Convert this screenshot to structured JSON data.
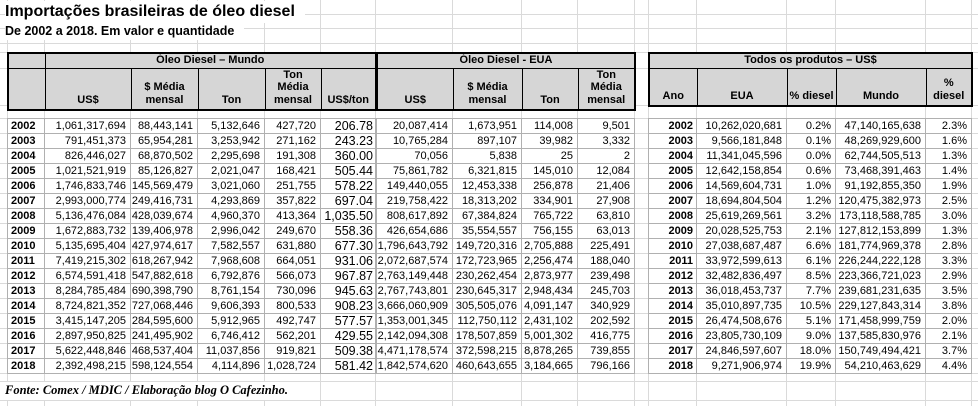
{
  "title": "Importações brasileiras de óleo diesel",
  "subtitle": "De 2002 a 2018. Em valor e quantidade",
  "source": "Fonte: Comex / MDIC / Elaboração blog O Cafezinho.",
  "sections": {
    "mundo": {
      "title": "Óleo Diesel – Mundo",
      "columns": [
        "US$",
        "$ Média mensal",
        "Ton",
        "Ton Média mensal",
        "US$/ton"
      ]
    },
    "eua": {
      "title": "Óleo Diesel - EUA",
      "columns": [
        "US$",
        "$ Média mensal",
        "Ton",
        "Ton Média mensal"
      ]
    },
    "todos": {
      "title": "Todos os produtos – US$",
      "columns": [
        "Ano",
        "EUA",
        "% diesel",
        "Mundo",
        "% diesel"
      ]
    }
  },
  "rows": [
    {
      "year": "2002",
      "mundo": [
        "1,061,317,694",
        "88,443,141",
        "5,132,646",
        "427,720",
        "206.78"
      ],
      "eua": [
        "20,087,414",
        "1,673,951",
        "114,008",
        "9,501"
      ],
      "todos": [
        "10,262,020,681",
        "0.2%",
        "47,140,165,638",
        "2.3%"
      ]
    },
    {
      "year": "2003",
      "mundo": [
        "791,451,373",
        "65,954,281",
        "3,253,942",
        "271,162",
        "243.23"
      ],
      "eua": [
        "10,765,284",
        "897,107",
        "39,982",
        "3,332"
      ],
      "todos": [
        "9,566,181,848",
        "0.1%",
        "48,269,929,600",
        "1.6%"
      ]
    },
    {
      "year": "2004",
      "mundo": [
        "826,446,027",
        "68,870,502",
        "2,295,698",
        "191,308",
        "360.00"
      ],
      "eua": [
        "70,056",
        "5,838",
        "25",
        "2"
      ],
      "todos": [
        "11,341,045,596",
        "0.0%",
        "62,744,505,513",
        "1.3%"
      ]
    },
    {
      "year": "2005",
      "mundo": [
        "1,021,521,919",
        "85,126,827",
        "2,021,047",
        "168,421",
        "505.44"
      ],
      "eua": [
        "75,861,782",
        "6,321,815",
        "145,010",
        "12,084"
      ],
      "todos": [
        "12,642,158,854",
        "0.6%",
        "73,468,391,463",
        "1.4%"
      ]
    },
    {
      "year": "2006",
      "mundo": [
        "1,746,833,746",
        "145,569,479",
        "3,021,060",
        "251,755",
        "578.22"
      ],
      "eua": [
        "149,440,055",
        "12,453,338",
        "256,878",
        "21,406"
      ],
      "todos": [
        "14,569,604,731",
        "1.0%",
        "91,192,855,350",
        "1.9%"
      ]
    },
    {
      "year": "2007",
      "mundo": [
        "2,993,000,774",
        "249,416,731",
        "4,293,869",
        "357,822",
        "697.04"
      ],
      "eua": [
        "219,758,422",
        "18,313,202",
        "334,901",
        "27,908"
      ],
      "todos": [
        "18,694,804,504",
        "1.2%",
        "120,475,382,973",
        "2.5%"
      ]
    },
    {
      "year": "2008",
      "mundo": [
        "5,136,476,084",
        "428,039,674",
        "4,960,370",
        "413,364",
        "1,035.50"
      ],
      "eua": [
        "808,617,892",
        "67,384,824",
        "765,722",
        "63,810"
      ],
      "todos": [
        "25,619,269,561",
        "3.2%",
        "173,118,588,785",
        "3.0%"
      ]
    },
    {
      "year": "2009",
      "mundo": [
        "1,672,883,732",
        "139,406,978",
        "2,996,042",
        "249,670",
        "558.36"
      ],
      "eua": [
        "426,654,686",
        "35,554,557",
        "756,155",
        "63,013"
      ],
      "todos": [
        "20,028,525,753",
        "2.1%",
        "127,812,153,899",
        "1.3%"
      ]
    },
    {
      "year": "2010",
      "mundo": [
        "5,135,695,404",
        "427,974,617",
        "7,582,557",
        "631,880",
        "677.30"
      ],
      "eua": [
        "1,796,643,792",
        "149,720,316",
        "2,705,888",
        "225,491"
      ],
      "todos": [
        "27,038,687,487",
        "6.6%",
        "181,774,969,378",
        "2.8%"
      ]
    },
    {
      "year": "2011",
      "mundo": [
        "7,419,215,302",
        "618,267,942",
        "7,968,608",
        "664,051",
        "931.06"
      ],
      "eua": [
        "2,072,687,574",
        "172,723,965",
        "2,256,474",
        "188,040"
      ],
      "todos": [
        "33,972,599,613",
        "6.1%",
        "226,244,222,128",
        "3.3%"
      ]
    },
    {
      "year": "2012",
      "mundo": [
        "6,574,591,418",
        "547,882,618",
        "6,792,876",
        "566,073",
        "967.87"
      ],
      "eua": [
        "2,763,149,448",
        "230,262,454",
        "2,873,977",
        "239,498"
      ],
      "todos": [
        "32,482,836,497",
        "8.5%",
        "223,366,721,023",
        "2.9%"
      ]
    },
    {
      "year": "2013",
      "mundo": [
        "8,284,785,484",
        "690,398,790",
        "8,761,154",
        "730,096",
        "945.63"
      ],
      "eua": [
        "2,767,743,801",
        "230,645,317",
        "2,948,434",
        "245,703"
      ],
      "todos": [
        "36,018,453,737",
        "7.7%",
        "239,681,231,635",
        "3.5%"
      ]
    },
    {
      "year": "2014",
      "mundo": [
        "8,724,821,352",
        "727,068,446",
        "9,606,393",
        "800,533",
        "908.23"
      ],
      "eua": [
        "3,666,060,909",
        "305,505,076",
        "4,091,147",
        "340,929"
      ],
      "todos": [
        "35,010,897,735",
        "10.5%",
        "229,127,843,314",
        "3.8%"
      ]
    },
    {
      "year": "2015",
      "mundo": [
        "3,415,147,205",
        "284,595,600",
        "5,912,965",
        "492,747",
        "577.57"
      ],
      "eua": [
        "1,353,001,345",
        "112,750,112",
        "2,431,102",
        "202,592"
      ],
      "todos": [
        "26,474,508,676",
        "5.1%",
        "171,458,999,759",
        "2.0%"
      ]
    },
    {
      "year": "2016",
      "mundo": [
        "2,897,950,825",
        "241,495,902",
        "6,746,412",
        "562,201",
        "429.55"
      ],
      "eua": [
        "2,142,094,308",
        "178,507,859",
        "5,001,302",
        "416,775"
      ],
      "todos": [
        "23,805,730,109",
        "9.0%",
        "137,585,830,976",
        "2.1%"
      ]
    },
    {
      "year": "2017",
      "mundo": [
        "5,622,448,846",
        "468,537,404",
        "11,037,856",
        "919,821",
        "509.38"
      ],
      "eua": [
        "4,471,178,574",
        "372,598,215",
        "8,878,265",
        "739,855"
      ],
      "todos": [
        "24,846,597,607",
        "18.0%",
        "150,749,494,421",
        "3.7%"
      ]
    },
    {
      "year": "2018",
      "mundo": [
        "2,392,498,215",
        "598,124,554",
        "4,114,896",
        "1,028,724",
        "581.42"
      ],
      "eua": [
        "1,842,574,620",
        "460,643,655",
        "3,184,665",
        "796,166"
      ],
      "todos": [
        "9,271,906,974",
        "19.9%",
        "54,210,463,629",
        "4.4%"
      ]
    }
  ]
}
